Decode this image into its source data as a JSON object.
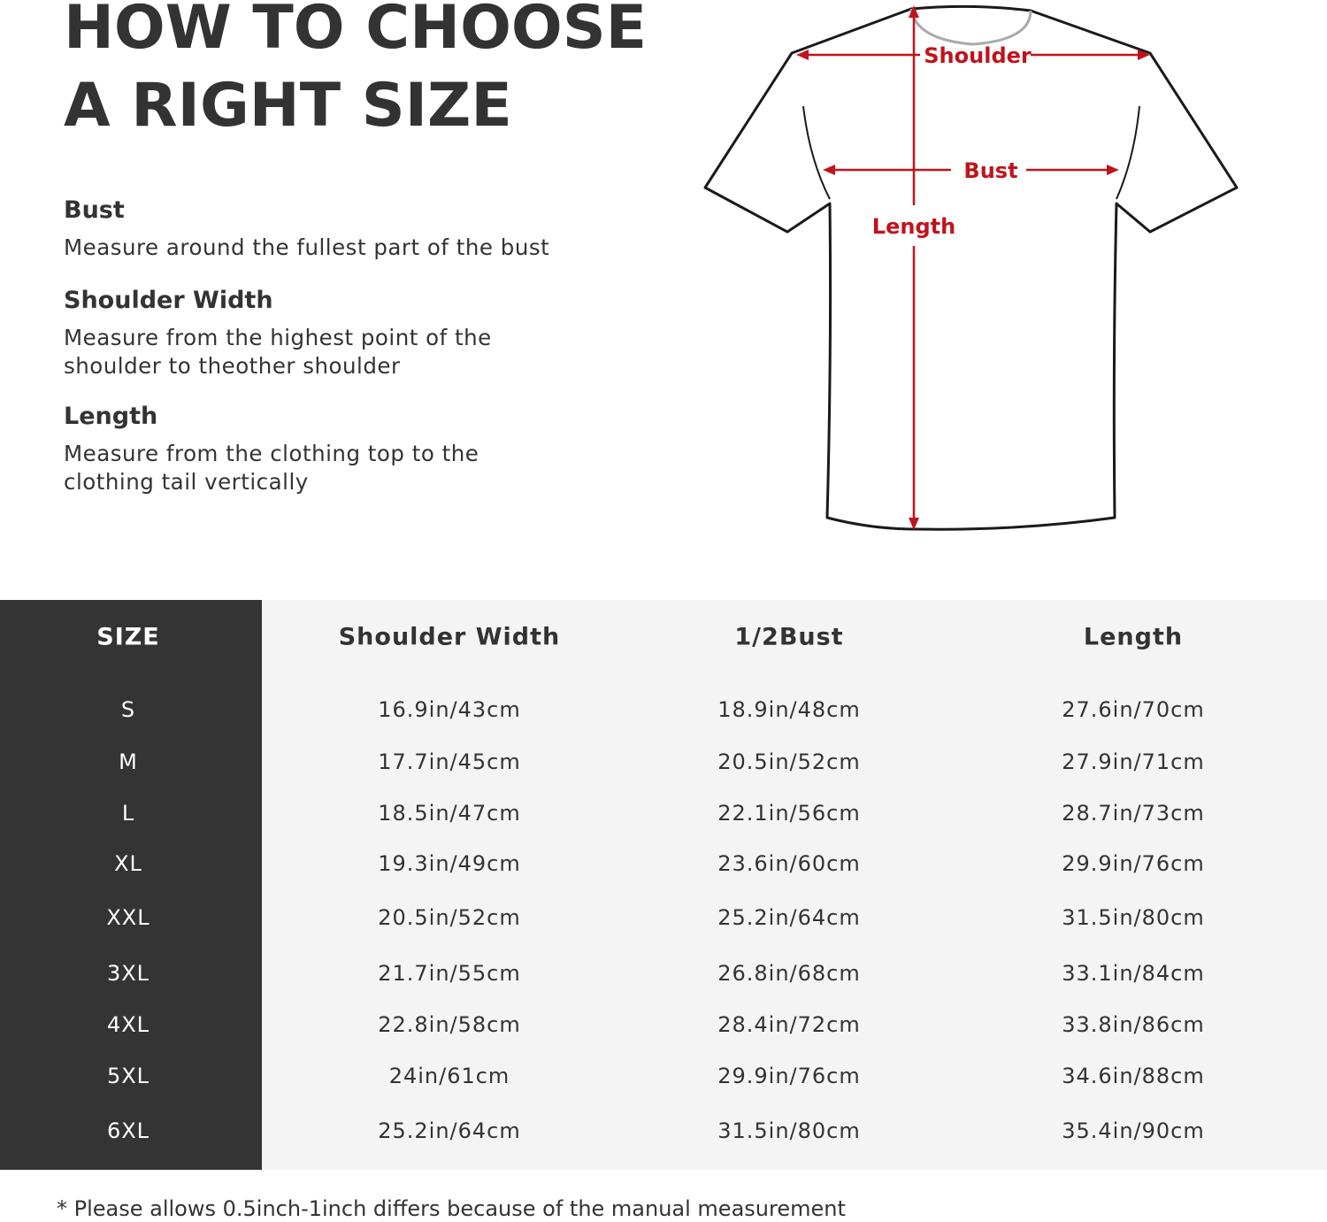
{
  "title": {
    "line1": "HOW TO CHOOSE",
    "line2": "A RIGHT SIZE"
  },
  "guide": [
    {
      "heading": "Bust",
      "text": "Measure around the fullest part of the bust"
    },
    {
      "heading": "Shoulder Width",
      "text": "Measure from the highest point of the shoulder to theother shoulder"
    },
    {
      "heading": "Length",
      "text": "Measure from the clothing top to the clothing tail vertically"
    }
  ],
  "diagram": {
    "shoulder_label": "Shoulder",
    "bust_label": "Bust",
    "length_label": "Length",
    "arrow_color": "#c0141c"
  },
  "table": {
    "headers": [
      "SIZE",
      "Shoulder Width",
      "1/2Bust",
      "Length"
    ],
    "rows": [
      [
        "S",
        "16.9in/43cm",
        "18.9in/48cm",
        "27.6in/70cm"
      ],
      [
        "M",
        "17.7in/45cm",
        "20.5in/52cm",
        "27.9in/71cm"
      ],
      [
        "L",
        "18.5in/47cm",
        "22.1in/56cm",
        "28.7in/73cm"
      ],
      [
        "XL",
        "19.3in/49cm",
        "23.6in/60cm",
        "29.9in/76cm"
      ],
      [
        "XXL",
        "20.5in/52cm",
        "25.2in/64cm",
        "31.5in/80cm"
      ],
      [
        "3XL",
        "21.7in/55cm",
        "26.8in/68cm",
        "33.1in/84cm"
      ],
      [
        "4XL",
        "22.8in/58cm",
        "28.4in/72cm",
        "33.8in/86cm"
      ],
      [
        "5XL",
        "24in/61cm",
        "29.9in/76cm",
        "34.6in/88cm"
      ],
      [
        "6XL",
        "25.2in/64cm",
        "31.5in/80cm",
        "35.4in/90cm"
      ]
    ]
  },
  "footnote": "* Please allows 0.5inch-1inch differs because of the  manual measurement"
}
